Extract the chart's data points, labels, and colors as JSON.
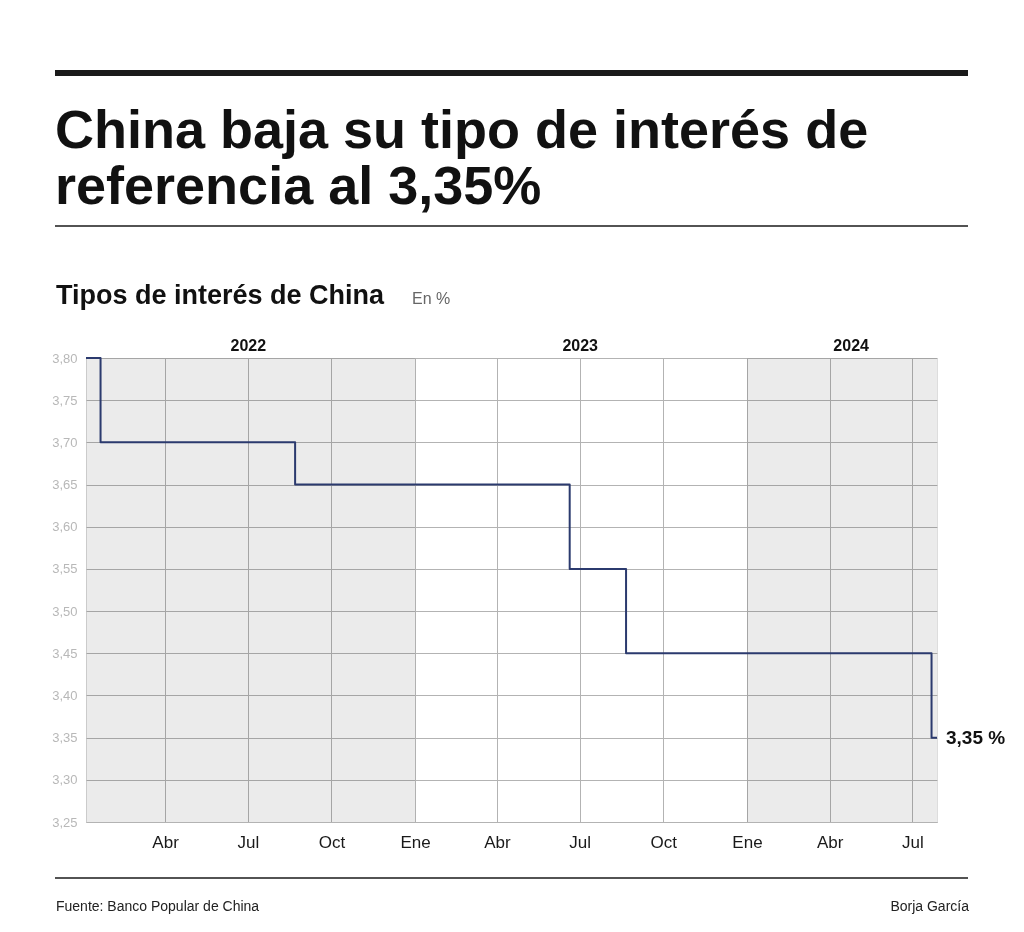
{
  "chart_data": {
    "type": "step",
    "title": "China baja su tipo de interés de referencia al 3,35%",
    "subtitle": "Tipos de interés de China",
    "ylabel": "En %",
    "x": [
      "2022-01-04",
      "2022-01-20",
      "2022-08-22",
      "2023-06-20",
      "2023-08-21",
      "2024-07-22",
      "2024-07-28"
    ],
    "series": [
      {
        "color": "#2b3a6e",
        "values": [
          3.8,
          3.7,
          3.65,
          3.55,
          3.45,
          3.35,
          3.35
        ]
      }
    ],
    "xlim": [
      "2022-01-04",
      "2024-07-28"
    ],
    "xticks": [
      {
        "value": "2022-04-01",
        "label": "Abr"
      },
      {
        "value": "2022-07-01",
        "label": "Jul"
      },
      {
        "value": "2022-10-01",
        "label": "Oct"
      },
      {
        "value": "2023-01-01",
        "label": "Ene"
      },
      {
        "value": "2023-04-01",
        "label": "Abr"
      },
      {
        "value": "2023-07-01",
        "label": "Jul"
      },
      {
        "value": "2023-10-01",
        "label": "Oct"
      },
      {
        "value": "2024-01-01",
        "label": "Ene"
      },
      {
        "value": "2024-04-01",
        "label": "Abr"
      },
      {
        "value": "2024-07-01",
        "label": "Jul"
      }
    ],
    "x2lim": [
      "2022-01-04",
      "2024-07-28"
    ],
    "x2ticks": [
      {
        "value": "2022-07-01",
        "label": "2022"
      },
      {
        "value": "2023-07-01",
        "label": "2023"
      },
      {
        "value": "2024-04-24",
        "label": "2024"
      }
    ],
    "ylim": [
      3.25,
      3.8
    ],
    "yticks": [
      {
        "value": 3.25,
        "label": "3,25"
      },
      {
        "value": 3.3,
        "label": "3,30"
      },
      {
        "value": 3.35,
        "label": "3,35"
      },
      {
        "value": 3.4,
        "label": "3,40"
      },
      {
        "value": 3.45,
        "label": "3,45"
      },
      {
        "value": 3.5,
        "label": "3,50"
      },
      {
        "value": 3.55,
        "label": "3,55"
      },
      {
        "value": 3.6,
        "label": "3,60"
      },
      {
        "value": 3.65,
        "label": "3,65"
      },
      {
        "value": 3.7,
        "label": "3,70"
      },
      {
        "value": 3.75,
        "label": "3,75"
      },
      {
        "value": 3.8,
        "label": "3,80"
      }
    ],
    "bands": [
      {
        "axis": "x",
        "from": "2022-01-04",
        "to": "2023-01-01",
        "color": "#ebebeb"
      },
      {
        "axis": "x",
        "from": "2024-01-01",
        "to": "2024-07-28",
        "color": "#ebebeb"
      }
    ],
    "grid": true,
    "annotations": [
      "Fuente: Banco Popular de China",
      "Borja García",
      {
        "text": "3,35 %",
        "x": "2024-07-28",
        "y": 3.35
      }
    ]
  }
}
